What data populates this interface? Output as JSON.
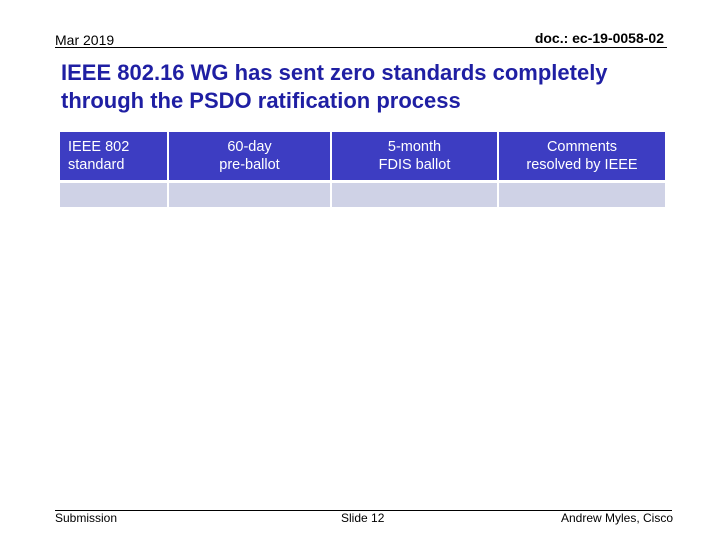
{
  "header": {
    "date": "Mar 2019",
    "doc_id": "doc.: ec-19-0058-02"
  },
  "slide": {
    "title_line1": "IEEE 802.16 WG has sent zero standards completely",
    "title_line2": "through the PSDO ratification process"
  },
  "table": {
    "headers": [
      {
        "line1": "IEEE 802",
        "line2": "standard"
      },
      {
        "line1": "60-day",
        "line2": "pre-ballot"
      },
      {
        "line1": "5-month",
        "line2": "FDIS ballot"
      },
      {
        "line1": "Comments",
        "line2": "resolved by IEEE"
      }
    ],
    "rows": [
      [
        "",
        "",
        "",
        ""
      ]
    ]
  },
  "footer": {
    "left": "Submission",
    "center": "Slide 12",
    "right": "Andrew Myles, Cisco"
  },
  "colors": {
    "title": "#1f1fa3",
    "table_header_bg": "#3d3dc2",
    "table_cell_bg": "#cfd2e6"
  }
}
